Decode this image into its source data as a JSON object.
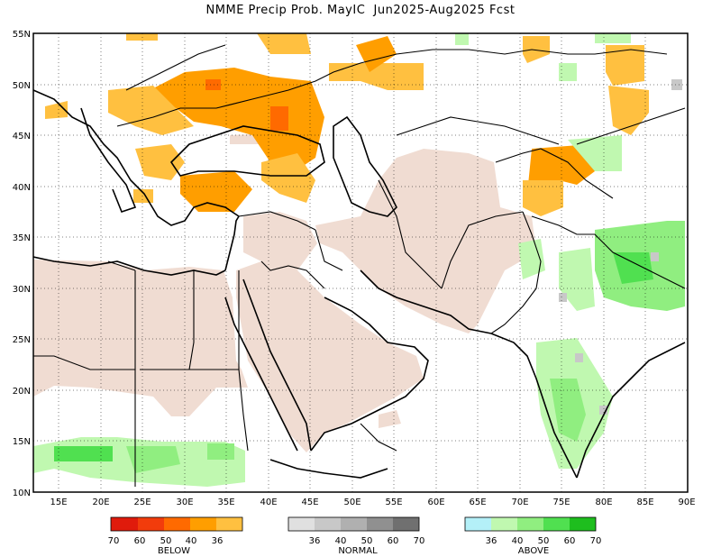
{
  "title": "NMME Precip Prob. MayIC  Jun2025-Aug2025 Fcst",
  "map": {
    "lon_range": [
      12,
      90
    ],
    "lat_range": [
      10,
      55
    ],
    "lon_ticks": [
      "15E",
      "20E",
      "25E",
      "30E",
      "35E",
      "40E",
      "45E",
      "50E",
      "55E",
      "60E",
      "65E",
      "70E",
      "75E",
      "80E",
      "85E",
      "90E"
    ],
    "lat_ticks": [
      "55N",
      "50N",
      "45N",
      "40N",
      "35N",
      "30N",
      "25N",
      "20N",
      "15N",
      "10N"
    ],
    "grid": "dotted"
  },
  "colors": {
    "dry_mask": "#f0dcd2",
    "below": [
      "#e01b0c",
      "#f23c0c",
      "#ff6a00",
      "#ff9e00",
      "#ffc040"
    ],
    "normal": [
      "#e0e0e0",
      "#c8c8c8",
      "#b0b0b0",
      "#909090",
      "#707070"
    ],
    "above": [
      "#b4f0f8",
      "#c0f8b0",
      "#90ee80",
      "#50e050",
      "#1ebe1e"
    ]
  },
  "legend": {
    "below": {
      "label": "BELOW",
      "ticks": [
        "70",
        "60",
        "50",
        "40",
        "36"
      ]
    },
    "normal": {
      "label": "NORMAL",
      "ticks": [
        "36",
        "40",
        "50",
        "60",
        "70"
      ]
    },
    "above": {
      "label": "ABOVE",
      "ticks": [
        "36",
        "40",
        "50",
        "60",
        "70"
      ]
    }
  }
}
